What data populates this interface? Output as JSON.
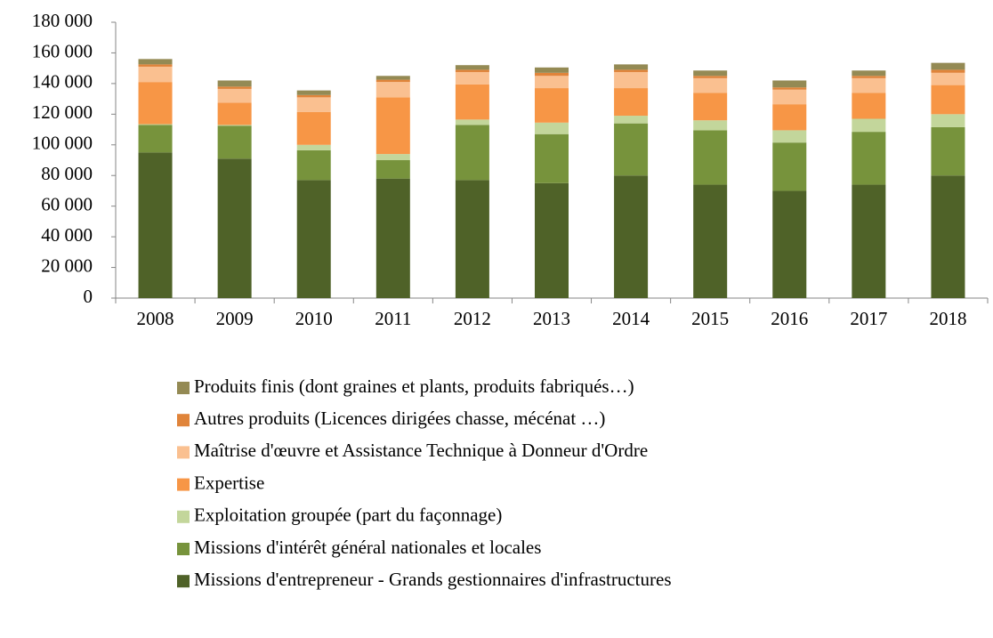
{
  "chart_data": {
    "type": "stacked_bar",
    "categories": [
      "2008",
      "2009",
      "2010",
      "2011",
      "2012",
      "2013",
      "2014",
      "2015",
      "2016",
      "2017",
      "2018"
    ],
    "series": [
      {
        "name": "Missions d'entrepreneur - Grands gestionnaires d'infrastructures",
        "color": "#4f6228",
        "values": [
          95000,
          91000,
          77000,
          78000,
          77000,
          75000,
          80000,
          74000,
          70000,
          74000,
          80000
        ]
      },
      {
        "name": "Missions d'intérêt général nationales et locales",
        "color": "#77933c",
        "values": [
          18000,
          21500,
          19500,
          12000,
          36000,
          32000,
          34000,
          35500,
          31500,
          34500,
          31500
        ]
      },
      {
        "name": "Exploitation groupée (part du façonnage)",
        "color": "#c3d69b",
        "values": [
          500,
          500,
          3500,
          4000,
          3500,
          7500,
          5000,
          6500,
          8000,
          8500,
          8500
        ]
      },
      {
        "name": "Expertise",
        "color": "#f79646",
        "values": [
          27500,
          14500,
          21500,
          37000,
          23000,
          22500,
          18000,
          18000,
          17000,
          17000,
          19000
        ]
      },
      {
        "name": "Maîtrise d'œuvre et Assistance Technique à Donneur d'Ordre",
        "color": "#fac090",
        "values": [
          10000,
          9000,
          9500,
          10000,
          8000,
          8000,
          10500,
          9500,
          9500,
          9500,
          8000
        ]
      },
      {
        "name": "Autres produits (Licences dirigées chasse, mécénat …)",
        "color": "#e0843a",
        "values": [
          1500,
          1500,
          1500,
          1500,
          1500,
          2000,
          1500,
          1500,
          1500,
          1500,
          2000
        ]
      },
      {
        "name": "Produits finis (dont graines et plants, produits fabriqués…)",
        "color": "#948a54",
        "values": [
          3500,
          4000,
          3000,
          2500,
          3000,
          3500,
          3500,
          3500,
          4500,
          3500,
          4500
        ]
      }
    ],
    "ylim": [
      0,
      180000
    ],
    "yticks": [
      0,
      {
        "value": 20000,
        "label": "20 000"
      },
      {
        "value": 40000,
        "label": "40 000"
      },
      {
        "value": 60000,
        "label": "60 000"
      },
      {
        "value": 80000,
        "label": "80 000"
      },
      {
        "value": 100000,
        "label": "100 000"
      },
      {
        "value": 120000,
        "label": "120 000"
      },
      {
        "value": 140000,
        "label": "140 000"
      },
      {
        "value": 160000,
        "label": "160 000"
      },
      {
        "value": 180000,
        "label": "180 000"
      }
    ],
    "grid": false,
    "legend": "bottom"
  }
}
